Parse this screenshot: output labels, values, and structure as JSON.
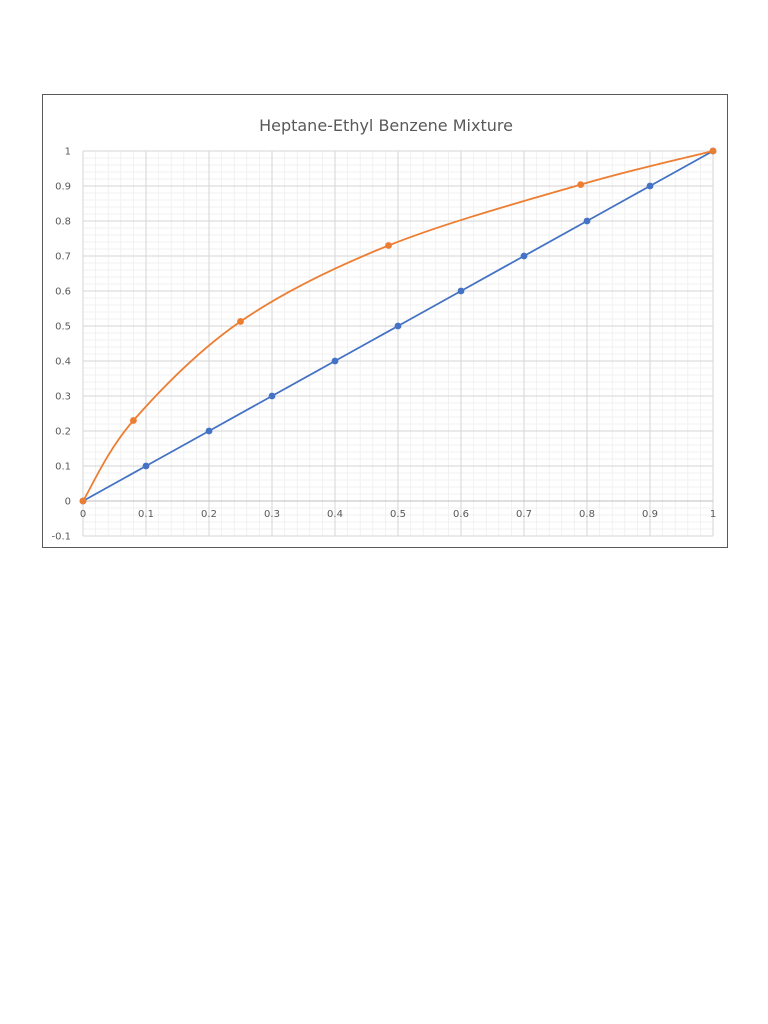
{
  "chart_data": {
    "type": "line",
    "title": "Heptane-Ethyl Benzene Mixture",
    "xlabel": "",
    "ylabel": "",
    "xlim": [
      0,
      1
    ],
    "ylim": [
      -0.1,
      1
    ],
    "x_ticks": [
      "0",
      "0.1",
      "0.2",
      "0.3",
      "0.4",
      "0.5",
      "0.6",
      "0.7",
      "0.8",
      "0.9",
      "1"
    ],
    "y_ticks": [
      "-0.1",
      "0",
      "0.1",
      "0.2",
      "0.3",
      "0.4",
      "0.5",
      "0.6",
      "0.7",
      "0.8",
      "0.9",
      "1"
    ],
    "grid": true,
    "minor_grid": true,
    "legend": "none",
    "series": [
      {
        "color": "#4472C4",
        "smooth": false,
        "points": [
          [
            0,
            0
          ],
          [
            0.1,
            0.1
          ],
          [
            0.2,
            0.2
          ],
          [
            0.3,
            0.3
          ],
          [
            0.4,
            0.4
          ],
          [
            0.5,
            0.5
          ],
          [
            0.6,
            0.6
          ],
          [
            0.7,
            0.7
          ],
          [
            0.8,
            0.8
          ],
          [
            0.9,
            0.9
          ],
          [
            1,
            1
          ]
        ]
      },
      {
        "color": "#ED7D31",
        "smooth": true,
        "points": [
          [
            0,
            0
          ],
          [
            0.08,
            0.23
          ],
          [
            0.25,
            0.513
          ],
          [
            0.485,
            0.73
          ],
          [
            0.79,
            0.904
          ],
          [
            1,
            1
          ]
        ]
      }
    ]
  }
}
